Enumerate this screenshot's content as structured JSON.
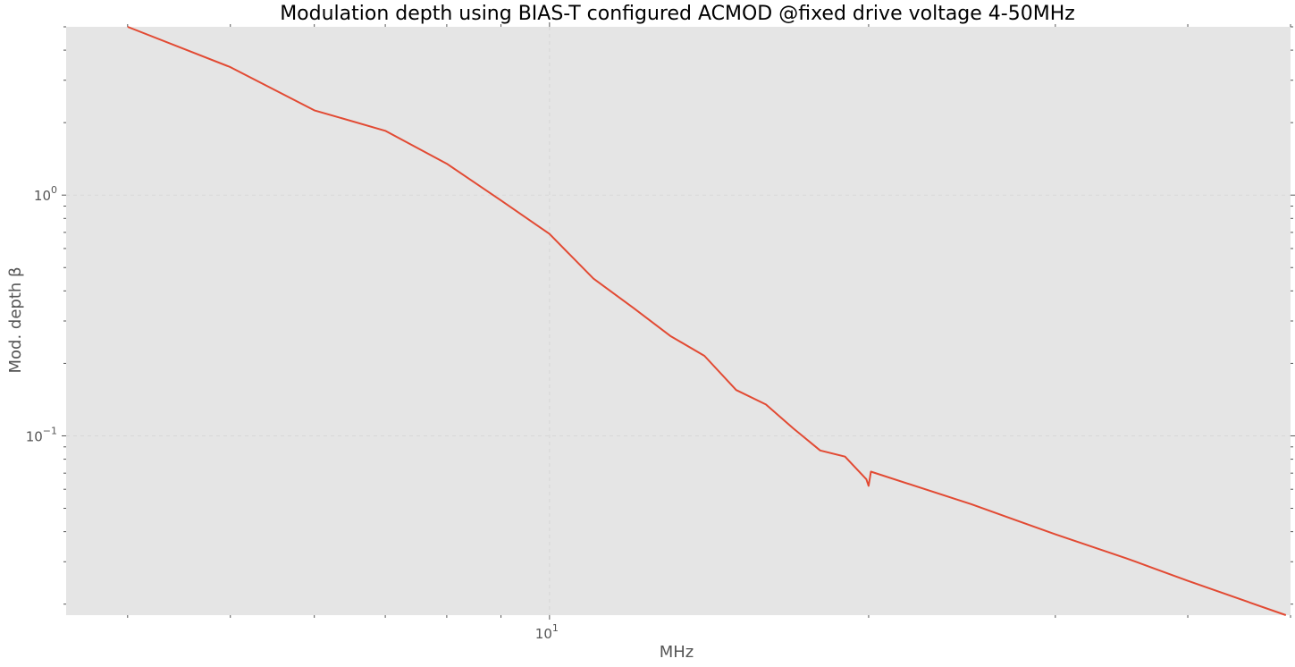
{
  "chart_data": {
    "type": "line",
    "title": "Modulation depth using BIAS-T configured ACMOD @fixed drive voltage 4-50MHz",
    "xlabel": "MHz",
    "ylabel": "Mod. depth β",
    "x_scale": "log",
    "y_scale": "log",
    "xlim": [
      3.5,
      50
    ],
    "ylim": [
      0.018,
      5.0
    ],
    "grid": true,
    "x_ticks": [
      {
        "value": 10,
        "label": "10",
        "exp": "1"
      }
    ],
    "y_ticks": [
      {
        "value": 1,
        "label": "10",
        "exp": "0"
      },
      {
        "value": 0.1,
        "label": "10",
        "exp": "−1"
      }
    ],
    "series": [
      {
        "color": "#e24a33",
        "x": [
          4,
          5,
          6,
          7,
          8,
          9,
          10,
          11,
          12,
          13,
          14,
          15,
          16,
          17,
          18,
          19,
          19.9,
          20,
          20.1,
          25,
          30,
          35,
          40,
          49.5
        ],
        "y": [
          5.0,
          3.4,
          2.25,
          1.85,
          1.35,
          0.95,
          0.69,
          0.45,
          0.34,
          0.26,
          0.215,
          0.155,
          0.135,
          0.107,
          0.087,
          0.082,
          0.066,
          0.062,
          0.071,
          0.052,
          0.039,
          0.031,
          0.025,
          0.018
        ]
      }
    ],
    "colors": {
      "plot_background": "#e5e5e5",
      "grid": "#d8d8d8",
      "text": "#555555"
    }
  }
}
